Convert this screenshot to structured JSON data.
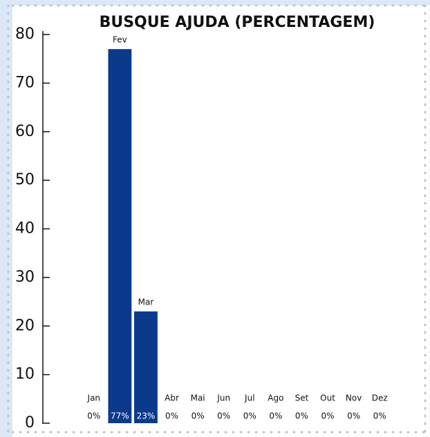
{
  "chart_data": {
    "type": "bar",
    "title": "BUSQUE AJUDA (PERCENTAGEM)",
    "categories": [
      "Jan",
      "Fev",
      "Mar",
      "Abr",
      "Mai",
      "Jun",
      "Jul",
      "Ago",
      "Set",
      "Out",
      "Nov",
      "Dez"
    ],
    "values": [
      0,
      77,
      23,
      0,
      0,
      0,
      0,
      0,
      0,
      0,
      0,
      0
    ],
    "value_labels": [
      "0%",
      "77%",
      "23%",
      "0%",
      "0%",
      "0%",
      "0%",
      "0%",
      "0%",
      "0%",
      "0%",
      "0%"
    ],
    "color": "#0b3a8c",
    "ylim": [
      0,
      80
    ],
    "yticks": [
      0,
      10,
      20,
      30,
      40,
      50,
      60,
      70,
      80
    ],
    "grid": false
  }
}
